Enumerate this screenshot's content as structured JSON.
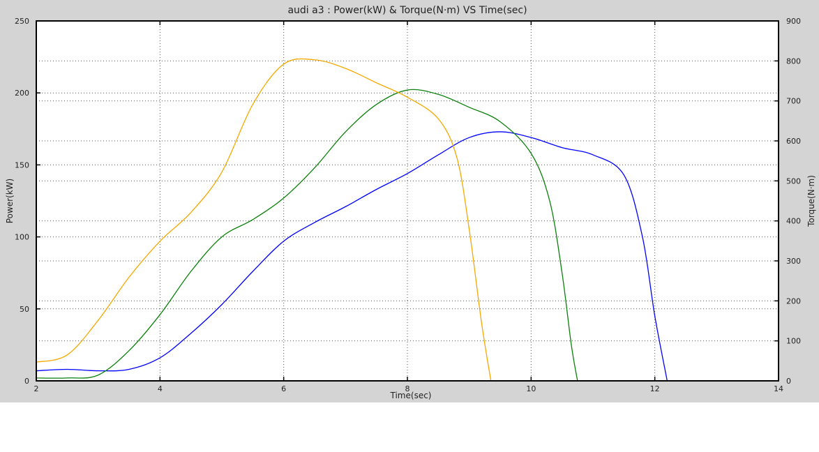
{
  "chart_data": {
    "type": "line",
    "title": "audi a3 : Power(kW) & Torque(N·m) VS Time(sec)",
    "xlabel": "Time(sec)",
    "ylabel": "Power(kW)",
    "y2label": "Torque(N·m)",
    "xlim": [
      2,
      14
    ],
    "ylim": [
      0,
      250
    ],
    "y2lim": [
      0,
      900
    ],
    "xticks": [
      2,
      4,
      6,
      8,
      10,
      12,
      14
    ],
    "yticks": [
      0,
      50,
      100,
      150,
      200,
      250
    ],
    "y2ticks": [
      0,
      100,
      200,
      300,
      400,
      500,
      600,
      700,
      800,
      900
    ],
    "grid": true,
    "series": [
      {
        "axis": "left",
        "color": "#0000ff",
        "x": [
          2.0,
          2.5,
          3.0,
          3.5,
          4.0,
          4.5,
          5.0,
          5.5,
          6.0,
          6.5,
          7.0,
          7.5,
          8.0,
          8.5,
          9.0,
          9.5,
          10.0,
          10.5,
          11.0,
          11.5,
          11.8,
          12.0,
          12.2
        ],
        "y": [
          7,
          8,
          7,
          8,
          16,
          33,
          53,
          76,
          97,
          110,
          121,
          133,
          144,
          157,
          169,
          173,
          169,
          162,
          157,
          143,
          100,
          45,
          0
        ]
      },
      {
        "axis": "left",
        "color": "#0a800a",
        "x": [
          2.0,
          2.5,
          3.0,
          3.5,
          4.0,
          4.5,
          5.0,
          5.5,
          6.0,
          6.5,
          7.0,
          7.5,
          8.0,
          8.5,
          9.0,
          9.5,
          10.0,
          10.3,
          10.5,
          10.65,
          10.75
        ],
        "y": [
          2,
          2,
          4,
          21,
          46,
          76,
          100,
          112,
          127,
          148,
          173,
          192,
          202,
          199,
          190,
          180,
          158,
          125,
          75,
          25,
          0
        ]
      },
      {
        "axis": "left",
        "color": "#f5a800",
        "x": [
          2.0,
          2.5,
          3.0,
          3.5,
          4.0,
          4.5,
          5.0,
          5.5,
          6.0,
          6.5,
          7.0,
          7.5,
          8.0,
          8.5,
          8.8,
          9.0,
          9.2,
          9.35
        ],
        "y": [
          13,
          18,
          42,
          72,
          97,
          117,
          145,
          192,
          220,
          223,
          217,
          207,
          197,
          182,
          155,
          105,
          40,
          0
        ]
      }
    ]
  }
}
